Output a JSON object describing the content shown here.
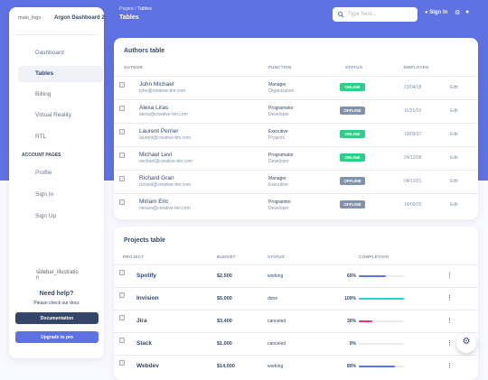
{
  "sidebar": {
    "logo_alt": "main_logo",
    "brand": "Argon Dashboard 2",
    "nav": [
      "Dashboard",
      "Tables",
      "Billing",
      "Virtual Reality",
      "RTL"
    ],
    "section": "ACCOUNT PAGES",
    "account_nav": [
      "Profile",
      "Sign In",
      "Sign Up"
    ],
    "illustration_alt": "sidebar_illustration",
    "help_title": "Need help?",
    "help_text": "Please check our docs",
    "buttons": [
      "Documentation",
      "Upgrade to pro"
    ]
  },
  "header": {
    "breadcrumb": [
      "Pages",
      "/",
      "Tables"
    ],
    "title": "Tables",
    "search_placeholder": "Type here...",
    "sign_in": "Sign In"
  },
  "authors": {
    "title": "Authors table",
    "columns": [
      "AUTHOR",
      "FUNCTION",
      "STATUS",
      "EMPLOYED"
    ],
    "action": "Edit",
    "rows": [
      {
        "name": "John Michael",
        "email": "john@creative-tim.com",
        "role": "Manager",
        "dept": "Organization",
        "status": "ONLINE",
        "badge_color": "#2dce89",
        "date": "23/04/18"
      },
      {
        "name": "Alexa Liras",
        "email": "alexa@creative-tim.com",
        "role": "Programator",
        "dept": "Developer",
        "status": "OFFLINE",
        "badge_color": "#8392ab",
        "date": "11/01/19"
      },
      {
        "name": "Laurent Perrier",
        "email": "laurent@creative-tim.com",
        "role": "Executive",
        "dept": "Projects",
        "status": "ONLINE",
        "badge_color": "#2dce89",
        "date": "19/09/17"
      },
      {
        "name": "Michael Levi",
        "email": "michael@creative-tim.com",
        "role": "Programator",
        "dept": "Developer",
        "status": "ONLINE",
        "badge_color": "#2dce89",
        "date": "24/12/08"
      },
      {
        "name": "Richard Gran",
        "email": "richard@creative-tim.com",
        "role": "Manager",
        "dept": "Executive",
        "status": "OFFLINE",
        "badge_color": "#8392ab",
        "date": "04/10/21"
      },
      {
        "name": "Miriam Eric",
        "email": "miriam@creative-tim.com",
        "role": "Programtor",
        "dept": "Developer",
        "status": "OFFLINE",
        "badge_color": "#8392ab",
        "date": "14/09/20"
      }
    ]
  },
  "projects": {
    "title": "Projects table",
    "columns": [
      "PROJECT",
      "BUDGET",
      "STATUS",
      "COMPLETION"
    ],
    "rows": [
      {
        "name": "Spotify",
        "budget": "$2,500",
        "status": "working",
        "completion": {
          "value": 60,
          "label": "60%"
        },
        "color": "#5e72e4"
      },
      {
        "name": "Invision",
        "budget": "$5,000",
        "status": "done",
        "completion": {
          "value": 100,
          "label": "100%"
        },
        "color": "#2dcecc"
      },
      {
        "name": "Jira",
        "budget": "$3,400",
        "status": "canceled",
        "completion": {
          "value": 30,
          "label": "30%"
        },
        "color": "#f5365c"
      },
      {
        "name": "Slack",
        "budget": "$1,000",
        "status": "canceled",
        "completion": {
          "value": 0,
          "label": "0%"
        },
        "color": "#5e72e4"
      },
      {
        "name": "Webdev",
        "budget": "$14,000",
        "status": "working",
        "completion": {
          "value": 80,
          "label": "80%"
        },
        "color": "#5e72e4"
      }
    ]
  }
}
